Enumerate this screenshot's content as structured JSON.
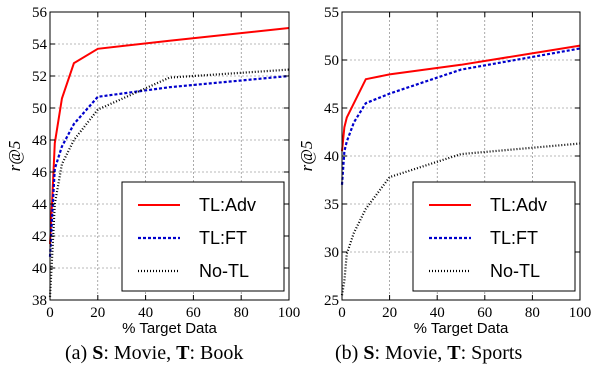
{
  "chart_data": [
    {
      "type": "line",
      "caption": {
        "tag": "(a)",
        "s_label": "S",
        "s_value": ": Movie,",
        "t_label": "T",
        "t_value": ": Book"
      },
      "xlabel": "% Target Data",
      "ylabel": "r@5",
      "xlim": [
        0,
        100
      ],
      "ylim": [
        38,
        56
      ],
      "xticks": [
        0,
        20,
        40,
        60,
        80,
        100
      ],
      "yticks": [
        38,
        40,
        42,
        44,
        46,
        48,
        50,
        52,
        54,
        56
      ],
      "grid": true,
      "legend_position": "bottom-right",
      "series": [
        {
          "name": "TL:Adv",
          "color": "#ff0000",
          "style": "solid",
          "x": [
            0,
            1,
            2,
            5,
            10,
            20,
            50,
            100
          ],
          "y": [
            41.5,
            44.5,
            47.8,
            50.6,
            52.8,
            53.7,
            54.2,
            55.0
          ]
        },
        {
          "name": "TL:FT",
          "color": "#0000cc",
          "style": "dashed",
          "x": [
            0,
            1,
            2,
            5,
            10,
            20,
            50,
            100
          ],
          "y": [
            40.7,
            43.5,
            46.2,
            47.6,
            49.0,
            50.7,
            51.3,
            52.0
          ]
        },
        {
          "name": "No-TL",
          "color": "#000000",
          "style": "dotted",
          "x": [
            0,
            1,
            2,
            5,
            10,
            20,
            50,
            100
          ],
          "y": [
            38.2,
            41.0,
            44.0,
            46.5,
            48.0,
            49.9,
            51.9,
            52.4
          ]
        }
      ]
    },
    {
      "type": "line",
      "caption": {
        "tag": "(b)",
        "s_label": "S",
        "s_value": ": Movie,",
        "t_label": "T",
        "t_value": ": Sports"
      },
      "xlabel": "% Target Data",
      "ylabel": "r@5",
      "xlim": [
        0,
        100
      ],
      "ylim": [
        25,
        55
      ],
      "xticks": [
        0,
        20,
        40,
        60,
        80,
        100
      ],
      "yticks": [
        25,
        30,
        35,
        40,
        45,
        50,
        55
      ],
      "grid": true,
      "legend_position": "bottom-right",
      "series": [
        {
          "name": "TL:Adv",
          "color": "#ff0000",
          "style": "solid",
          "x": [
            0,
            1,
            2,
            5,
            10,
            20,
            50,
            100
          ],
          "y": [
            40.5,
            43.0,
            44.0,
            45.5,
            48.0,
            48.5,
            49.5,
            51.5
          ]
        },
        {
          "name": "TL:FT",
          "color": "#0000cc",
          "style": "dashed",
          "x": [
            0,
            1,
            2,
            5,
            10,
            20,
            50,
            100
          ],
          "y": [
            37.0,
            40.5,
            41.5,
            43.5,
            45.5,
            46.5,
            49.0,
            51.2
          ]
        },
        {
          "name": "No-TL",
          "color": "#000000",
          "style": "dotted",
          "x": [
            0,
            1,
            2,
            5,
            10,
            20,
            50,
            100
          ],
          "y": [
            25.5,
            27.0,
            29.8,
            32.0,
            34.5,
            37.8,
            40.2,
            41.3
          ]
        }
      ]
    }
  ]
}
